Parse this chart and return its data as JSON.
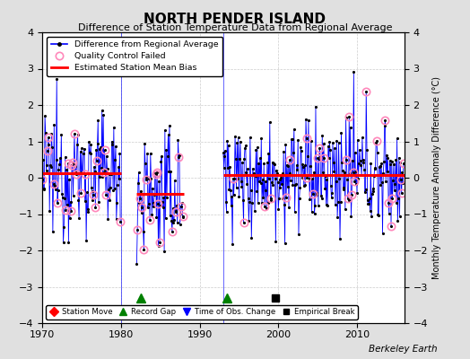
{
  "title": "NORTH PENDER ISLAND",
  "subtitle": "Difference of Station Temperature Data from Regional Average",
  "ylabel": "Monthly Temperature Anomaly Difference (°C)",
  "credit": "Berkeley Earth",
  "ylim": [
    -4,
    4
  ],
  "xlim": [
    1970,
    2016
  ],
  "background_color": "#e0e0e0",
  "plot_bg_color": "#ffffff",
  "grid_color": "#c0c0c0",
  "segments": [
    {
      "start": 1970.0,
      "end": 1980.0,
      "bias": 0.12
    },
    {
      "start": 1982.0,
      "end": 1988.0,
      "bias": -0.45
    },
    {
      "start": 1993.0,
      "end": 2016.0,
      "bias": 0.08
    }
  ],
  "vlines_x": [
    1980.0,
    1993.0
  ],
  "record_gaps": [
    1982.5,
    1993.5
  ],
  "empirical_breaks": [
    1999.6
  ],
  "xticks": [
    1970,
    1980,
    1990,
    2000,
    2010
  ],
  "yticks": [
    -4,
    -3,
    -2,
    -1,
    0,
    1,
    2,
    3,
    4
  ]
}
